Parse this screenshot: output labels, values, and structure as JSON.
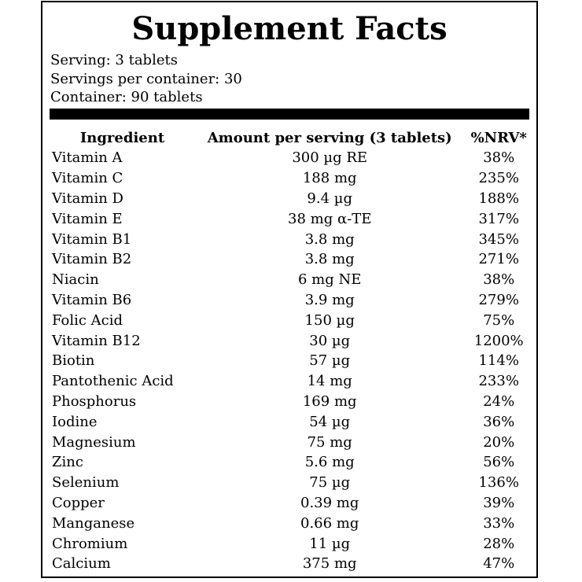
{
  "title": "Supplement Facts",
  "meta": {
    "serving": "Serving: 3 tablets",
    "servings_per_container": "Servings per container: 30",
    "container": "Container: 90 tablets"
  },
  "table": {
    "headers": [
      "Ingredient",
      "Amount per serving (3 tablets)",
      "%NRV*"
    ],
    "rows": [
      {
        "ingredient": "Vitamin A",
        "amount": "300 µg RE",
        "nrv": "38%"
      },
      {
        "ingredient": "Vitamin C",
        "amount": "188 mg",
        "nrv": "235%"
      },
      {
        "ingredient": "Vitamin D",
        "amount": "9.4 µg",
        "nrv": "188%"
      },
      {
        "ingredient": "Vitamin E",
        "amount": "38 mg α-TE",
        "nrv": "317%"
      },
      {
        "ingredient": "Vitamin B1",
        "amount": "3.8 mg",
        "nrv": "345%"
      },
      {
        "ingredient": "Vitamin B2",
        "amount": "3.8 mg",
        "nrv": "271%"
      },
      {
        "ingredient": "Niacin",
        "amount": "6 mg NE",
        "nrv": "38%"
      },
      {
        "ingredient": "Vitamin B6",
        "amount": "3.9 mg",
        "nrv": "279%"
      },
      {
        "ingredient": "Folic Acid",
        "amount": "150 µg",
        "nrv": "75%"
      },
      {
        "ingredient": "Vitamin B12",
        "amount": "30 µg",
        "nrv": "1200%"
      },
      {
        "ingredient": "Biotin",
        "amount": "57 µg",
        "nrv": "114%"
      },
      {
        "ingredient": "Pantothenic Acid",
        "amount": "14 mg",
        "nrv": "233%"
      },
      {
        "ingredient": "Phosphorus",
        "amount": "169 mg",
        "nrv": "24%"
      },
      {
        "ingredient": "Iodine",
        "amount": "54 µg",
        "nrv": "36%"
      },
      {
        "ingredient": "Magnesium",
        "amount": "75 mg",
        "nrv": "20%"
      },
      {
        "ingredient": "Zinc",
        "amount": "5.6 mg",
        "nrv": "56%"
      },
      {
        "ingredient": "Selenium",
        "amount": "75 µg",
        "nrv": "136%"
      },
      {
        "ingredient": "Copper",
        "amount": "0.39 mg",
        "nrv": "39%"
      },
      {
        "ingredient": "Manganese",
        "amount": "0.66 mg",
        "nrv": "33%"
      },
      {
        "ingredient": "Chromium",
        "amount": "11 µg",
        "nrv": "28%"
      },
      {
        "ingredient": "Calcium",
        "amount": "375 mg",
        "nrv": "47%"
      }
    ]
  }
}
